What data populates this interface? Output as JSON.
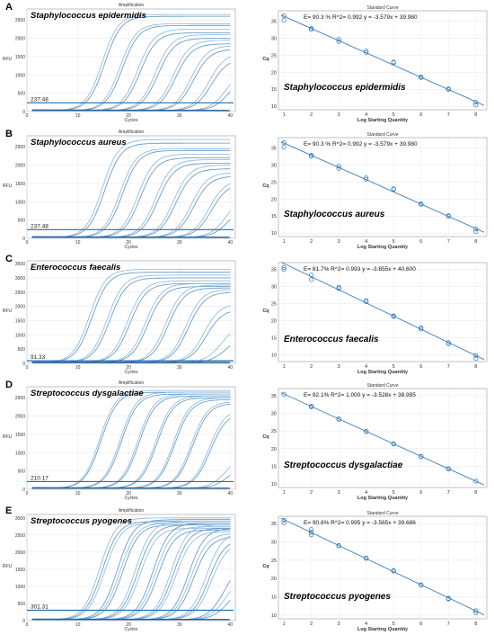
{
  "rows": [
    {
      "letter": "A",
      "amplification": {
        "title": "Amplification",
        "species": "Staphylococcus epidermidis",
        "ylabel": "RFU",
        "xlabel": "Cycles",
        "threshold_label": "237.48",
        "threshold": 237.48,
        "xticks": [
          "0",
          "10",
          "20",
          "30",
          "40"
        ],
        "yticks": [
          "0",
          "500",
          "1000",
          "1500",
          "2000",
          "2500"
        ],
        "ylim": [
          0,
          2800
        ],
        "xlim": [
          0,
          41
        ]
      },
      "standard": {
        "title": "Standard Curve",
        "species": "Staphylococcus epidermidis",
        "equation": "E= 90.3 % R^2= 0.992  y = -3.579x + 39.980",
        "ylabel": "Cq",
        "xlabel": "Log Starting Quantity",
        "xticks": [
          "1",
          "2",
          "3",
          "4",
          "5",
          "6",
          "7",
          "8"
        ],
        "yticks": [
          "10",
          "15",
          "20",
          "25",
          "30",
          "35"
        ],
        "ylim": [
          9,
          38
        ],
        "xlim": [
          0.8,
          8.4
        ]
      }
    },
    {
      "letter": "B",
      "amplification": {
        "title": "Amplification",
        "species": "Staphylococcus aureus",
        "ylabel": "RFU",
        "xlabel": "Cycles",
        "threshold_label": "237.48",
        "threshold": 237.48,
        "xticks": [
          "0",
          "10",
          "20",
          "30",
          "40"
        ],
        "yticks": [
          "0",
          "500",
          "1000",
          "1500",
          "2000",
          "2500"
        ],
        "ylim": [
          0,
          2800
        ],
        "xlim": [
          0,
          41
        ]
      },
      "standard": {
        "title": "Standard Curve",
        "species": "Staphylococcus aureus",
        "equation": "E= 90.3 % R^2= 0.992  y = -3.579x + 39.980",
        "ylabel": "Cq",
        "xlabel": "Log Starting Quantity",
        "xticks": [
          "1",
          "2",
          "3",
          "4",
          "5",
          "6",
          "7",
          "8"
        ],
        "yticks": [
          "10",
          "15",
          "20",
          "25",
          "30",
          "35"
        ],
        "ylim": [
          9,
          38
        ],
        "xlim": [
          0.8,
          8.4
        ]
      }
    },
    {
      "letter": "C",
      "amplification": {
        "title": "",
        "species": "Enterococcus faecalis",
        "ylabel": "RFU",
        "xlabel": "Cycles",
        "threshold_label": "91.33",
        "threshold": 91.33,
        "xticks": [
          "0",
          "10",
          "20",
          "30",
          "40"
        ],
        "yticks": [
          "0",
          "500",
          "1000",
          "1500",
          "2000",
          "2500",
          "3000",
          "3500"
        ],
        "ylim": [
          0,
          3600
        ],
        "xlim": [
          0,
          41
        ]
      },
      "standard": {
        "title": "",
        "species": "Enterococcus faecalis",
        "equation": "E= 81.7% R^2= 0.993  y = -3.855x + 40.600",
        "ylabel": "Cq",
        "xlabel": "Log Starting Quantity",
        "xticks": [
          "1",
          "2",
          "3",
          "4",
          "5",
          "6",
          "7",
          "8"
        ],
        "yticks": [
          "10",
          "15",
          "20",
          "25",
          "30",
          "35"
        ],
        "ylim": [
          8,
          37
        ],
        "xlim": [
          0.8,
          8.4
        ]
      }
    },
    {
      "letter": "D",
      "amplification": {
        "title": "Amplification",
        "species": "Streptococcus dysgalactiae",
        "ylabel": "RFU",
        "xlabel": "Cycles",
        "threshold_label": "210.17",
        "threshold": 210.17,
        "xticks": [
          "0",
          "10",
          "20",
          "30",
          "40"
        ],
        "yticks": [
          "0",
          "500",
          "1000",
          "1500",
          "2000",
          "2500"
        ],
        "ylim": [
          0,
          2800
        ],
        "xlim": [
          0,
          41
        ]
      },
      "standard": {
        "title": "Standard Curve",
        "species": "Streptococcus dysgalactiae",
        "equation": "E= 92.1% R^2= 1.000  y = -3.528x + 38.995",
        "ylabel": "Cq",
        "xlabel": "Log Starting Quantity",
        "xticks": [
          "1",
          "2",
          "3",
          "4",
          "5",
          "6",
          "7",
          "8"
        ],
        "yticks": [
          "10",
          "15",
          "20",
          "25",
          "30",
          "35"
        ],
        "ylim": [
          9,
          37
        ],
        "xlim": [
          0.8,
          8.4
        ]
      }
    },
    {
      "letter": "E",
      "amplification": {
        "title": "Amplification",
        "species": "Streptococcus pyogenes",
        "ylabel": "RFU",
        "xlabel": "Cycles",
        "threshold_label": "301.31",
        "threshold": 301.31,
        "xticks": [
          "0",
          "10",
          "20",
          "30",
          "40"
        ],
        "yticks": [
          "0",
          "500",
          "1000",
          "1500",
          "2000",
          "2500",
          "3000"
        ],
        "ylim": [
          0,
          3100
        ],
        "xlim": [
          0,
          41
        ]
      },
      "standard": {
        "title": "Standard Curve",
        "species": "Streptococcus pyogenes",
        "equation": "E= 90.8% R^2= 0.995  y = -3.565x + 39.686",
        "ylabel": "Cq",
        "xlabel": "Log Starting Quantity",
        "xticks": [
          "1",
          "2",
          "3",
          "4",
          "5",
          "6",
          "7",
          "8"
        ],
        "yticks": [
          "10",
          "15",
          "20",
          "25",
          "30",
          "35"
        ],
        "ylim": [
          9,
          37
        ],
        "xlim": [
          0.8,
          8.4
        ]
      }
    }
  ],
  "chart_data": [
    {
      "type": "line",
      "panel": "A-amplification",
      "title": "Amplification",
      "xlabel": "Cycles",
      "ylabel": "RFU",
      "xlim": [
        0,
        41
      ],
      "ylim": [
        0,
        2800
      ],
      "threshold": 237.48,
      "series": [
        {
          "ct": 12.5,
          "plateau": 2650
        },
        {
          "ct": 13,
          "plateau": 2600
        },
        {
          "ct": 16,
          "plateau": 2400
        },
        {
          "ct": 16.5,
          "plateau": 2350
        },
        {
          "ct": 19.5,
          "plateau": 2250
        },
        {
          "ct": 20,
          "plateau": 2150
        },
        {
          "ct": 23,
          "plateau": 2100
        },
        {
          "ct": 23.5,
          "plateau": 2000
        },
        {
          "ct": 26.5,
          "plateau": 1950
        },
        {
          "ct": 27,
          "plateau": 1850
        },
        {
          "ct": 30,
          "plateau": 1800
        },
        {
          "ct": 30.5,
          "plateau": 1700
        },
        {
          "ct": 33.5,
          "plateau": 1600
        },
        {
          "ct": 34,
          "plateau": 1450
        },
        {
          "ct": 37,
          "plateau": 1200
        },
        {
          "ct": 37.5,
          "plateau": 1000
        }
      ]
    },
    {
      "type": "scatter",
      "panel": "A-standard",
      "title": "Standard Curve",
      "xlabel": "Log Starting Quantity",
      "ylabel": "Cq",
      "xlim": [
        0.8,
        8.4
      ],
      "ylim": [
        9,
        38
      ],
      "slope": -3.579,
      "intercept": 39.98,
      "x": [
        1,
        1,
        2,
        2,
        3,
        3,
        4,
        4,
        5,
        5,
        6,
        6,
        7,
        7,
        8,
        8
      ],
      "y": [
        36.5,
        35.2,
        32.8,
        32.5,
        29.6,
        29.0,
        26.2,
        25.8,
        23.0,
        22.8,
        18.6,
        18.4,
        15.1,
        14.9,
        11.2,
        10.4
      ]
    },
    {
      "type": "line",
      "panel": "B-amplification",
      "title": "Amplification",
      "xlabel": "Cycles",
      "ylabel": "RFU",
      "xlim": [
        0,
        41
      ],
      "ylim": [
        0,
        2800
      ],
      "threshold": 237.48,
      "series": [
        {
          "ct": 12.5,
          "plateau": 2700
        },
        {
          "ct": 13,
          "plateau": 2600
        },
        {
          "ct": 16,
          "plateau": 2450
        },
        {
          "ct": 16.5,
          "plateau": 2400
        },
        {
          "ct": 19.5,
          "plateau": 2300
        },
        {
          "ct": 20,
          "plateau": 2200
        },
        {
          "ct": 23,
          "plateau": 2150
        },
        {
          "ct": 23.5,
          "plateau": 2050
        },
        {
          "ct": 26.5,
          "plateau": 2000
        },
        {
          "ct": 27,
          "plateau": 1900
        },
        {
          "ct": 30,
          "plateau": 1800
        },
        {
          "ct": 30.5,
          "plateau": 1700
        },
        {
          "ct": 33.5,
          "plateau": 1600
        },
        {
          "ct": 34,
          "plateau": 1500
        },
        {
          "ct": 37,
          "plateau": 1200
        },
        {
          "ct": 37.5,
          "plateau": 950
        }
      ]
    },
    {
      "type": "scatter",
      "panel": "B-standard",
      "title": "Standard Curve",
      "xlabel": "Log Starting Quantity",
      "ylabel": "Cq",
      "xlim": [
        0.8,
        8.4
      ],
      "ylim": [
        9,
        38
      ],
      "slope": -3.579,
      "intercept": 39.98,
      "x": [
        1,
        1,
        2,
        2,
        3,
        3,
        4,
        4,
        5,
        5,
        6,
        6,
        7,
        7,
        8,
        8
      ],
      "y": [
        36.5,
        35.2,
        32.8,
        32.5,
        29.6,
        29.0,
        26.2,
        25.8,
        23.0,
        22.8,
        18.6,
        18.4,
        15.1,
        14.9,
        11.2,
        10.4
      ]
    },
    {
      "type": "line",
      "panel": "C-amplification",
      "xlabel": "Cycles",
      "ylabel": "RFU",
      "xlim": [
        0,
        41
      ],
      "ylim": [
        0,
        3600
      ],
      "threshold": 91.33,
      "series": [
        {
          "ct": 10,
          "plateau": 3300
        },
        {
          "ct": 10.5,
          "plateau": 3200
        },
        {
          "ct": 13.5,
          "plateau": 3100
        },
        {
          "ct": 14,
          "plateau": 3000
        },
        {
          "ct": 17.5,
          "plateau": 2900
        },
        {
          "ct": 18,
          "plateau": 2800
        },
        {
          "ct": 21,
          "plateau": 2800
        },
        {
          "ct": 21.5,
          "plateau": 2700
        },
        {
          "ct": 25,
          "plateau": 2750
        },
        {
          "ct": 25.5,
          "plateau": 2650
        },
        {
          "ct": 29,
          "plateau": 2600
        },
        {
          "ct": 29.5,
          "plateau": 2500
        },
        {
          "ct": 32.5,
          "plateau": 2100
        },
        {
          "ct": 33,
          "plateau": 1900
        },
        {
          "ct": 36,
          "plateau": 1400
        },
        {
          "ct": 37,
          "plateau": 1000
        }
      ]
    },
    {
      "type": "scatter",
      "panel": "C-standard",
      "xlabel": "Log Starting Quantity",
      "ylabel": "Cq",
      "xlim": [
        0.8,
        8.4
      ],
      "ylim": [
        8,
        37
      ],
      "slope": -3.855,
      "intercept": 40.6,
      "x": [
        1,
        1,
        2,
        2,
        3,
        3,
        4,
        4,
        5,
        5,
        6,
        6,
        7,
        7,
        8,
        8
      ],
      "y": [
        35.6,
        35.0,
        33.4,
        32.0,
        29.8,
        29.4,
        25.9,
        25.5,
        21.4,
        21.2,
        17.9,
        17.5,
        13.6,
        13.2,
        9.8,
        8.9
      ]
    },
    {
      "type": "line",
      "panel": "D-amplification",
      "title": "Amplification",
      "xlabel": "Cycles",
      "ylabel": "RFU",
      "xlim": [
        0,
        41
      ],
      "ylim": [
        0,
        2800
      ],
      "threshold": 210.17,
      "series": [
        {
          "ct": 12,
          "plateau": 2700
        },
        {
          "ct": 12.3,
          "plateau": 2650
        },
        {
          "ct": 16,
          "plateau": 2650
        },
        {
          "ct": 16.3,
          "plateau": 2600
        },
        {
          "ct": 19.5,
          "plateau": 2600
        },
        {
          "ct": 19.8,
          "plateau": 2550
        },
        {
          "ct": 23,
          "plateau": 2550
        },
        {
          "ct": 23.3,
          "plateau": 2500
        },
        {
          "ct": 26.5,
          "plateau": 2500
        },
        {
          "ct": 26.8,
          "plateau": 2450
        },
        {
          "ct": 30,
          "plateau": 2400
        },
        {
          "ct": 30.3,
          "plateau": 2350
        },
        {
          "ct": 33.5,
          "plateau": 2200
        },
        {
          "ct": 33.8,
          "plateau": 2100
        },
        {
          "ct": 37,
          "plateau": 1000
        },
        {
          "ct": 37.5,
          "plateau": 700
        }
      ]
    },
    {
      "type": "scatter",
      "panel": "D-standard",
      "title": "Standard Curve",
      "xlabel": "Log Starting Quantity",
      "ylabel": "Cq",
      "xlim": [
        0.8,
        8.4
      ],
      "ylim": [
        9,
        37
      ],
      "slope": -3.528,
      "intercept": 38.995,
      "x": [
        1,
        2,
        2,
        3,
        3,
        4,
        4,
        5,
        5,
        6,
        6,
        7,
        7,
        8
      ],
      "y": [
        35.4,
        32.0,
        31.8,
        28.4,
        28.3,
        24.9,
        24.8,
        21.4,
        21.3,
        17.8,
        17.7,
        14.3,
        14.2,
        10.8
      ]
    },
    {
      "type": "line",
      "panel": "E-amplification",
      "title": "Amplification",
      "xlabel": "Cycles",
      "ylabel": "RFU",
      "xlim": [
        0,
        41
      ],
      "ylim": [
        0,
        3100
      ],
      "threshold": 301.31,
      "series": [
        {
          "ct": 12,
          "plateau": 3000
        },
        {
          "ct": 12.5,
          "plateau": 2900
        },
        {
          "ct": 13,
          "plateau": 2850
        },
        {
          "ct": 15.5,
          "plateau": 2950
        },
        {
          "ct": 16,
          "plateau": 2850
        },
        {
          "ct": 16.5,
          "plateau": 2800
        },
        {
          "ct": 19,
          "plateau": 2900
        },
        {
          "ct": 19.5,
          "plateau": 2800
        },
        {
          "ct": 20,
          "plateau": 2700
        },
        {
          "ct": 22.5,
          "plateau": 2850
        },
        {
          "ct": 23,
          "plateau": 2750
        },
        {
          "ct": 23.5,
          "plateau": 2650
        },
        {
          "ct": 26,
          "plateau": 2800
        },
        {
          "ct": 26.5,
          "plateau": 2700
        },
        {
          "ct": 27,
          "plateau": 2600
        },
        {
          "ct": 29.5,
          "plateau": 2700
        },
        {
          "ct": 30,
          "plateau": 2550
        },
        {
          "ct": 30.5,
          "plateau": 2450
        },
        {
          "ct": 33,
          "plateau": 2600
        },
        {
          "ct": 33.5,
          "plateau": 2400
        },
        {
          "ct": 34,
          "plateau": 2300
        },
        {
          "ct": 36.5,
          "plateau": 1700
        },
        {
          "ct": 37,
          "plateau": 1400
        },
        {
          "ct": 37.5,
          "plateau": 1100
        }
      ]
    },
    {
      "type": "scatter",
      "panel": "E-standard",
      "title": "Standard Curve",
      "xlabel": "Log Starting Quantity",
      "ylabel": "Cq",
      "xlim": [
        0.8,
        8.4
      ],
      "ylim": [
        9,
        37
      ],
      "slope": -3.565,
      "intercept": 39.686,
      "x": [
        1,
        1,
        2,
        2,
        2,
        3,
        3,
        4,
        4,
        5,
        5,
        6,
        6,
        7,
        7,
        8,
        8
      ],
      "y": [
        35.9,
        35.2,
        33.4,
        32.6,
        31.9,
        29.0,
        28.9,
        25.6,
        25.5,
        22.2,
        22.0,
        18.3,
        18.2,
        14.6,
        14.4,
        11.2,
        10.6
      ]
    }
  ]
}
